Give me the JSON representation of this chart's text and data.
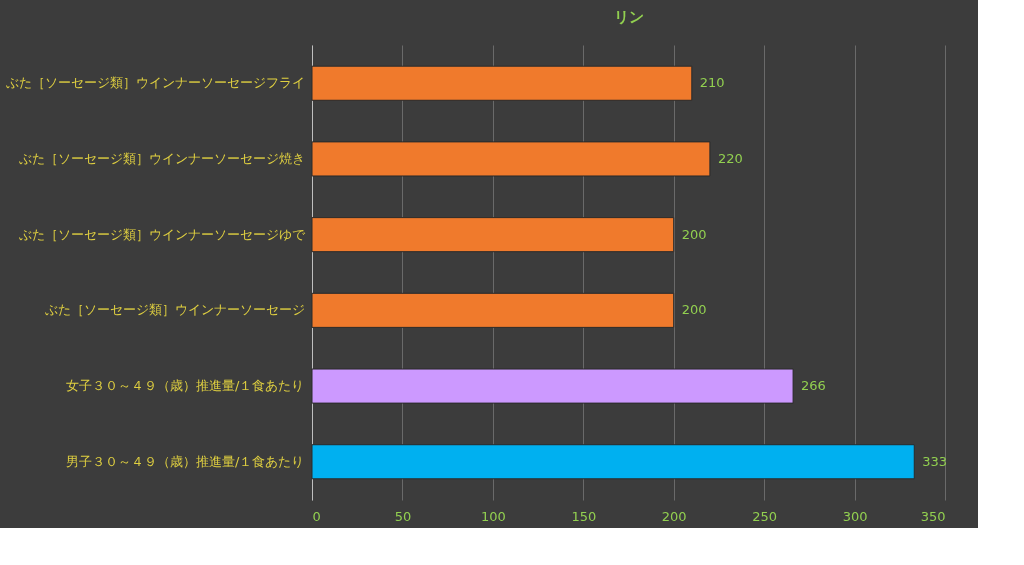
{
  "chart_data": {
    "type": "bar",
    "orientation": "horizontal",
    "title": "リン",
    "categories": [
      "ぶた［ソーセージ類］ウインナーソーセージフライ",
      "ぶた［ソーセージ類］ウインナーソーセージ焼き",
      "ぶた［ソーセージ類］ウインナーソーセージゆで",
      "ぶた［ソーセージ類］ウインナーソーセージ",
      "女子３０～４９（歳）推進量/１食あたり",
      "男子３０～４９（歳）推進量/１食あたり"
    ],
    "values": [
      210,
      220,
      200,
      200,
      266,
      333
    ],
    "colors": [
      "#f07a2c",
      "#f07a2c",
      "#f07a2c",
      "#f07a2c",
      "#cc99ff",
      "#00b0f0"
    ],
    "xlim": [
      0,
      350
    ],
    "xticks": [
      0,
      50,
      100,
      150,
      200,
      250,
      300,
      350
    ],
    "grid": "x",
    "data_labels": true
  }
}
